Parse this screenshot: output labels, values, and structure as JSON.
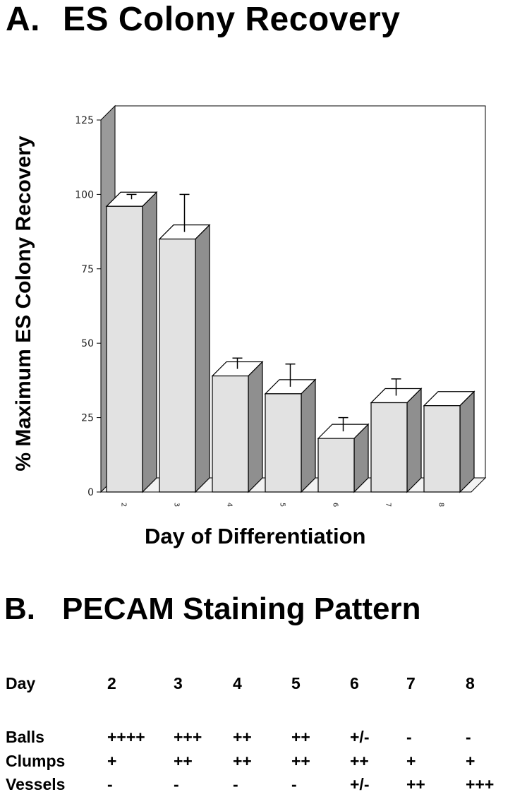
{
  "panel_a": {
    "letter": "A.",
    "title": "ES Colony Recovery"
  },
  "panel_b": {
    "letter": "B.",
    "title": "PECAM Staining Pattern"
  },
  "chart_data": {
    "type": "bar",
    "style": "3d",
    "categories": [
      "2",
      "3",
      "4",
      "5",
      "6",
      "7",
      "8"
    ],
    "series": [
      {
        "values": [
          96,
          85,
          39,
          33,
          18,
          30,
          29
        ],
        "error_upper": [
          100,
          100,
          45,
          43,
          25,
          38,
          null
        ]
      }
    ],
    "ylabel": "% Maximum ES Colony Recovery",
    "xlabel": "Day of Differentiation",
    "yticks": [
      "0",
      "25",
      "50",
      "75",
      "100",
      "125"
    ],
    "ylim": [
      0,
      125
    ],
    "grid": false,
    "colors": {
      "bar_front": "#e2e2e2",
      "bar_side": "#8f8f8f",
      "bar_top": "#ffffff",
      "wall": "#9a9a9a"
    }
  },
  "pecam_table": {
    "header": {
      "label": "Day",
      "values": [
        "2",
        "3",
        "4",
        "5",
        "6",
        "7",
        "8"
      ]
    },
    "rows": [
      {
        "label": "Balls",
        "values": [
          "++++",
          "+++",
          "++",
          "++",
          "+/-",
          "-",
          "-"
        ]
      },
      {
        "label": "Clumps",
        "values": [
          "+",
          "++",
          "++",
          "++",
          "++",
          "+",
          "+"
        ]
      },
      {
        "label": "Vessels",
        "values": [
          "-",
          "-",
          "-",
          "-",
          "+/-",
          "++",
          "+++"
        ]
      }
    ]
  }
}
